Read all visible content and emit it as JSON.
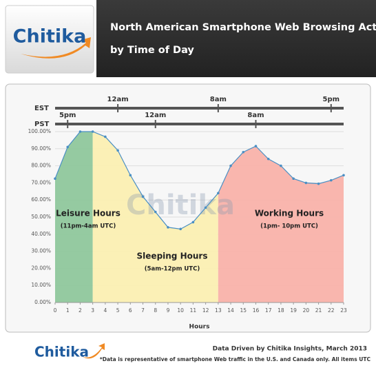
{
  "header": {
    "logo": "Chitika"
  },
  "chart_data": {
    "type": "line",
    "title": "North American Smartphone Web Browsing Activity",
    "subtitle": "by Time of Day",
    "xlabel": "Hours",
    "x": [
      0,
      1,
      2,
      3,
      4,
      5,
      6,
      7,
      8,
      9,
      10,
      11,
      12,
      13,
      14,
      15,
      16,
      17,
      18,
      19,
      20,
      21,
      22,
      23
    ],
    "series": [
      {
        "color": "#4a8fc4",
        "values": [
          72.5,
          91,
          100,
          100,
          97,
          89,
          74.5,
          62,
          53,
          44,
          43,
          47,
          55.5,
          64,
          80,
          88,
          91.5,
          84,
          80,
          72.5,
          70,
          69.5,
          71.5,
          74.5
        ]
      }
    ],
    "xlim": [
      0,
      23
    ],
    "xticks": [
      0,
      1,
      2,
      3,
      4,
      5,
      6,
      7,
      8,
      9,
      10,
      11,
      12,
      13,
      14,
      15,
      16,
      17,
      18,
      19,
      20,
      21,
      22,
      23
    ],
    "ylim": [
      0,
      100
    ],
    "yticks": [
      {
        "value": 0,
        "label": "0.00%"
      },
      {
        "value": 10,
        "label": "10.00%"
      },
      {
        "value": 20,
        "label": "20.00%"
      },
      {
        "value": 30,
        "label": "30.00%"
      },
      {
        "value": 40,
        "label": "40.00%"
      },
      {
        "value": 50,
        "label": "50.00%"
      },
      {
        "value": 60,
        "label": "60.00%"
      },
      {
        "value": 70,
        "label": "70.00%"
      },
      {
        "value": 80,
        "label": "80.00%"
      },
      {
        "value": 90,
        "label": "90.00%"
      },
      {
        "value": 100,
        "label": "100.00%"
      }
    ],
    "grid": true,
    "bands": [
      {
        "from": 0,
        "to": 3,
        "color": "#8fc79c"
      },
      {
        "from": 3,
        "to": 13,
        "color": "#fbefb2"
      },
      {
        "from": 13,
        "to": 23,
        "color": "#f9b2aa"
      }
    ],
    "annotations": [
      "Leisure Hours",
      "(11pm-4am UTC)",
      "Sleeping Hours",
      "(5am-12pm UTC)",
      "Working Hours",
      "(1pm- 10pm UTC)"
    ],
    "timelines": [
      {
        "name": "EST",
        "marks": [
          {
            "x": 5,
            "label": "12am"
          },
          {
            "x": 13,
            "label": "8am"
          },
          {
            "x": 22,
            "label": "5pm"
          }
        ]
      },
      {
        "name": "PST",
        "marks": [
          {
            "x": 1,
            "label": "5pm"
          },
          {
            "x": 8,
            "label": "12am"
          },
          {
            "x": 16,
            "label": "8am"
          }
        ]
      }
    ],
    "watermark": "Chitika"
  },
  "footer": {
    "logo": "Chitika",
    "credit": "Data Driven by Chitika Insights, March 2013",
    "note": "*Data is representative of smartphone Web traffic in the U.S. and Canada only. All items UTC"
  }
}
